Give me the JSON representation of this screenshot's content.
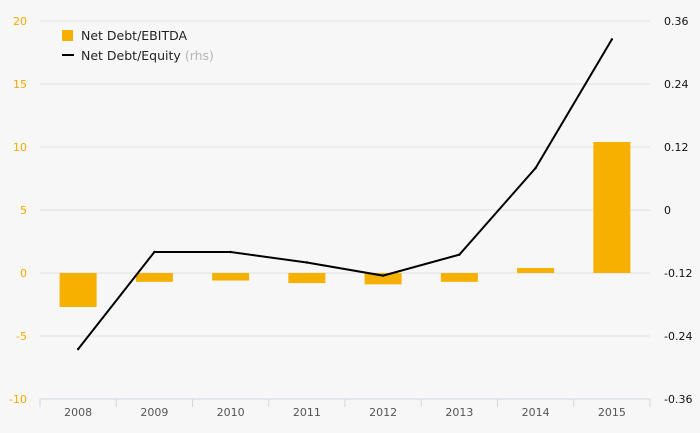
{
  "chart_data": {
    "type": "bar",
    "categories": [
      "2008",
      "2009",
      "2010",
      "2011",
      "2012",
      "2013",
      "2014",
      "2015"
    ],
    "series": [
      {
        "name": "Net Debt/EBITDA",
        "type": "bar",
        "axis": "left",
        "color": "#f5b000",
        "values": [
          -2.7,
          -0.7,
          -0.6,
          -0.8,
          -0.9,
          -0.7,
          0.4,
          10.4
        ]
      },
      {
        "name": "Net Debt/Equity",
        "name_suffix": "(rhs)",
        "type": "line",
        "axis": "right",
        "color": "#000000",
        "values": [
          -0.265,
          -0.08,
          -0.08,
          -0.1,
          -0.125,
          -0.085,
          0.08,
          0.325
        ]
      }
    ],
    "y_left": {
      "lim": [
        -10,
        20
      ],
      "ticks": [
        -10,
        -5,
        0,
        5,
        10,
        15,
        20
      ],
      "tick_labels": [
        "-10",
        "-5",
        "0",
        "5",
        "10",
        "15",
        "20"
      ],
      "color": "#f2a900"
    },
    "y_right": {
      "lim": [
        -0.36,
        0.36
      ],
      "ticks": [
        -0.36,
        -0.24,
        -0.12,
        0,
        0.12,
        0.24,
        0.36
      ],
      "tick_labels": [
        "-0.36",
        "-0.24",
        "-0.12",
        "0",
        "0.12",
        "0.24",
        "0.36"
      ],
      "color": "#111111"
    },
    "grid": true,
    "legend": {
      "position": "top-left",
      "items": [
        {
          "label": "Net Debt/EBITDA",
          "sub": "",
          "symbol": "bar"
        },
        {
          "label": "Net Debt/Equity",
          "sub": "(rhs)",
          "symbol": "line"
        }
      ]
    },
    "title": "",
    "xlabel": "",
    "ylabel": ""
  }
}
